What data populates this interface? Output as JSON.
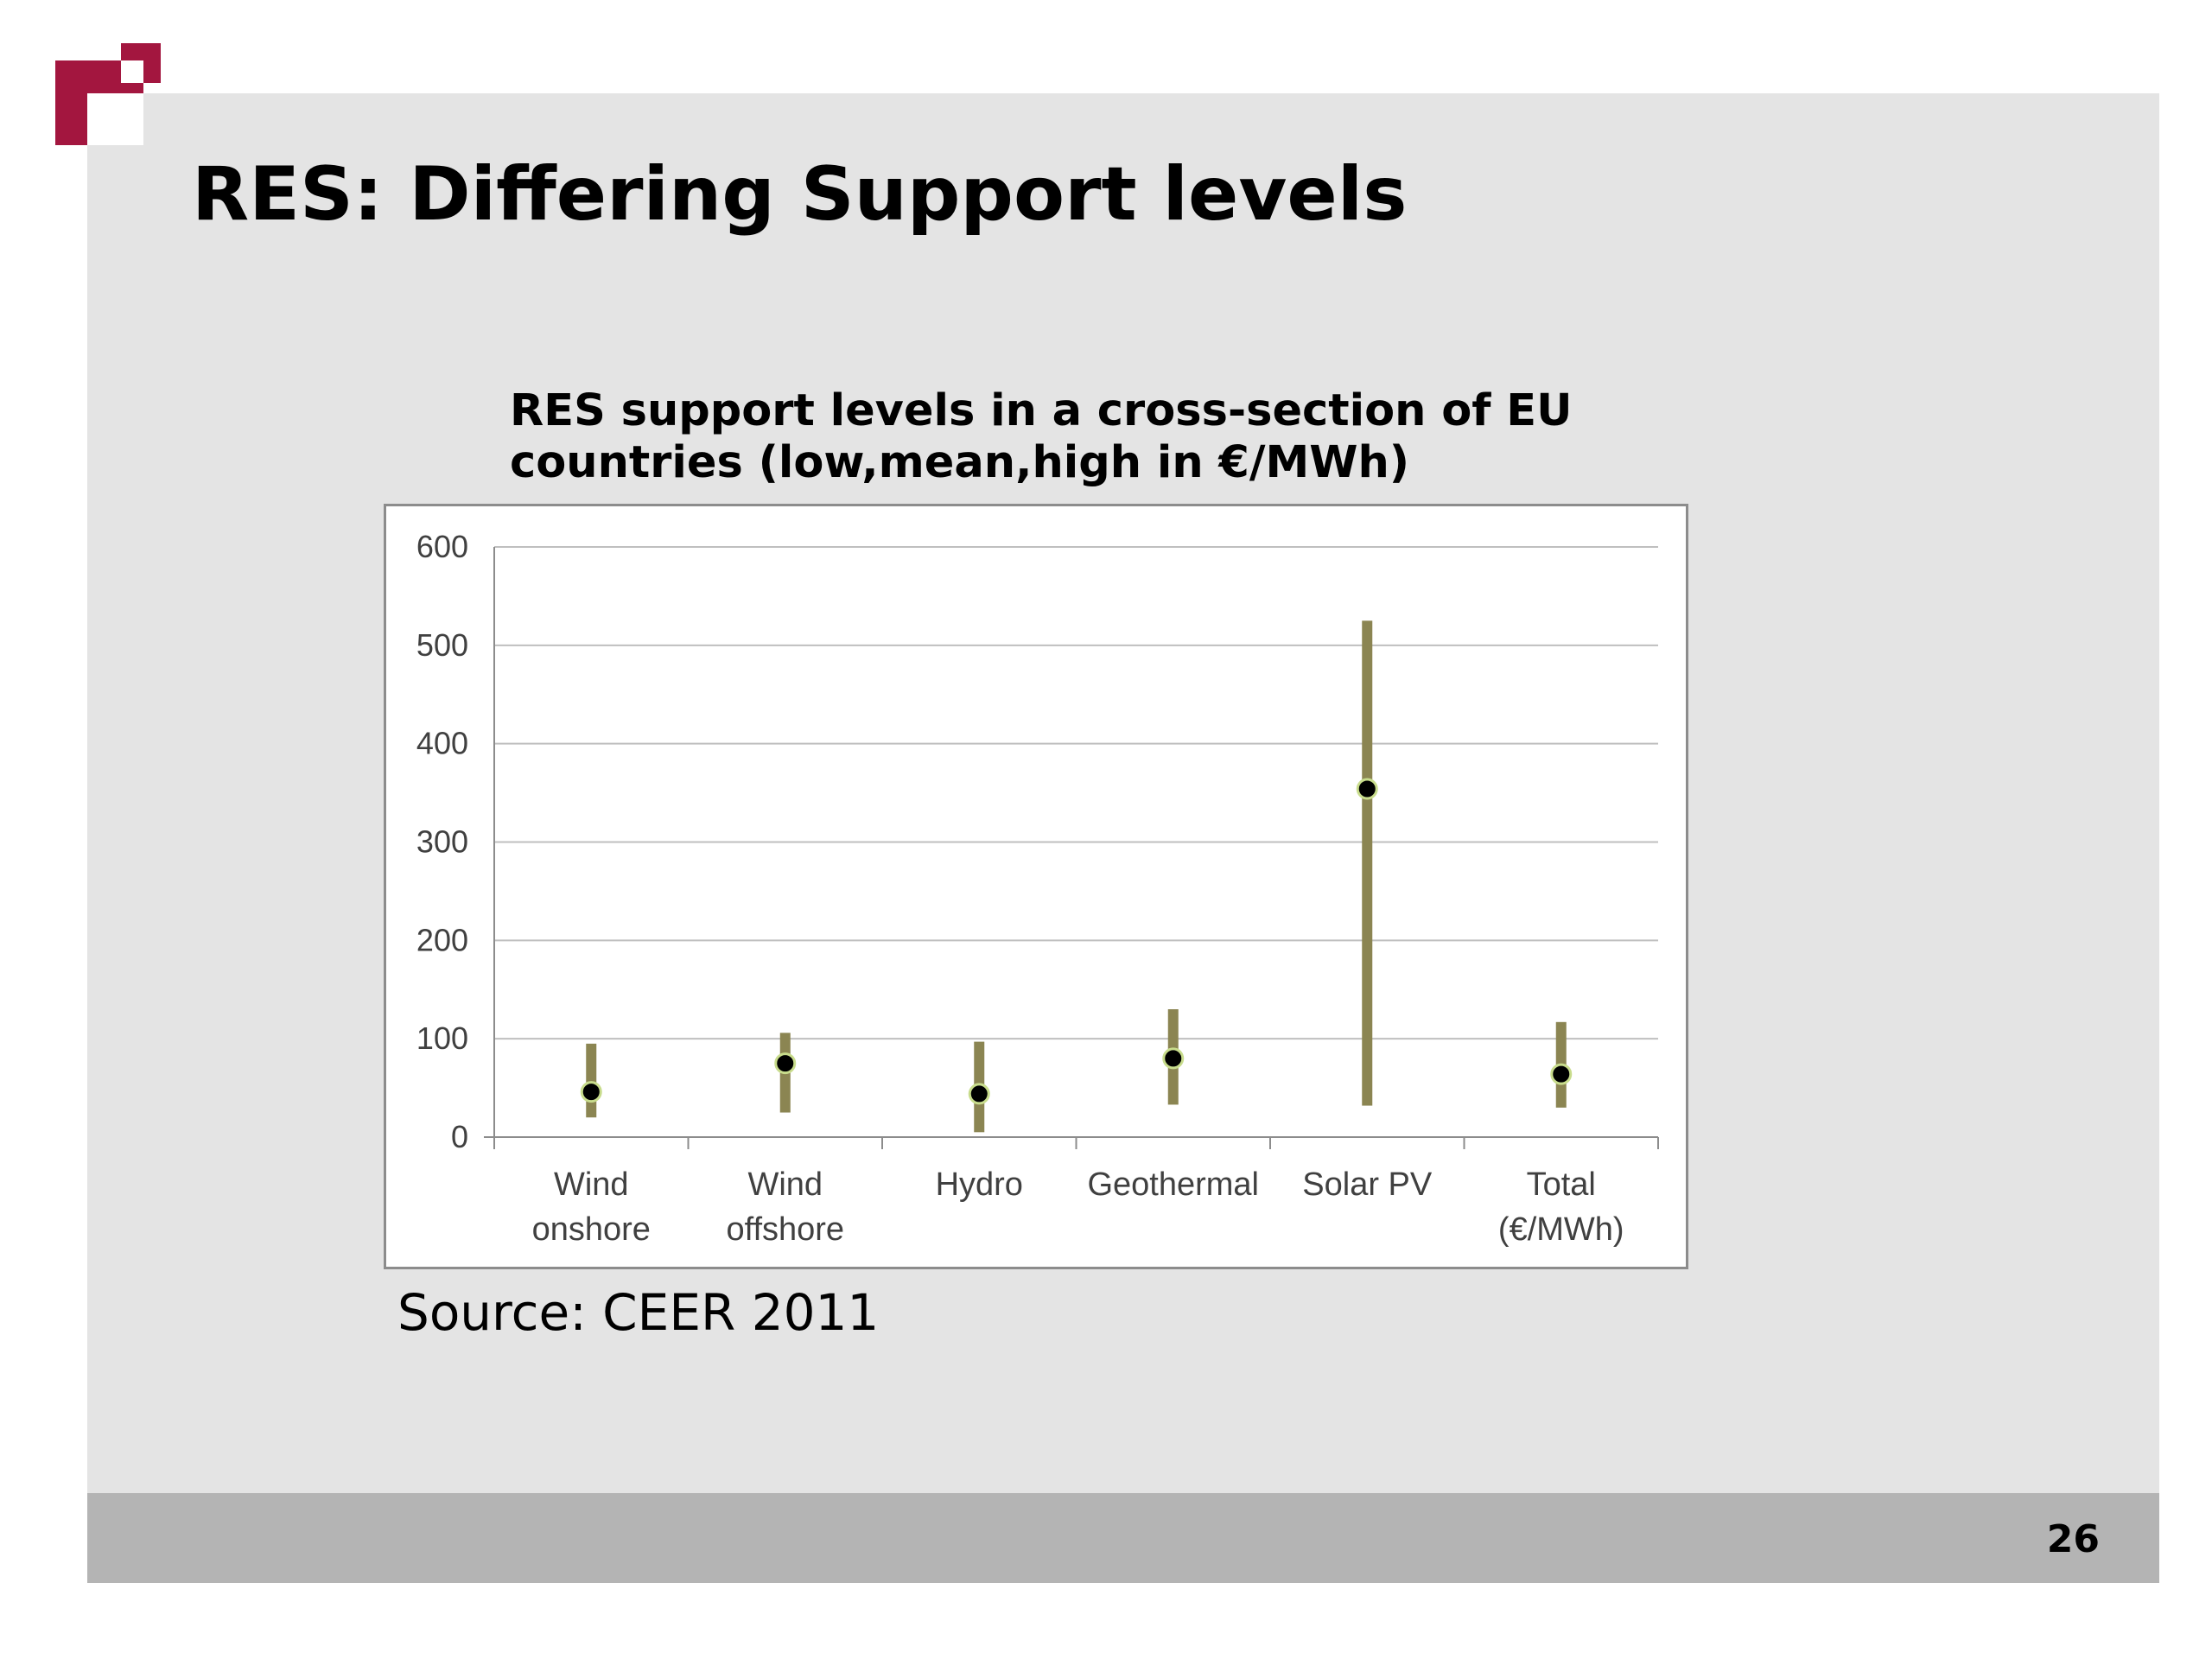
{
  "slide": {
    "title": "RES: Differing Support levels",
    "source": "Source: CEER 2011",
    "page_number": "26"
  },
  "colors": {
    "brand": "#a3163f",
    "range_bar": "#8b8552",
    "mean_marker": "#000000",
    "marker_outline": "#c8dc8c"
  },
  "chart_data": {
    "type": "range",
    "title_lines": [
      "RES support levels in a cross-section of EU",
      "countries (low,mean,high in €/MWh)"
    ],
    "categories": [
      [
        "Wind",
        "onshore"
      ],
      [
        "Wind",
        "offshore"
      ],
      [
        "Hydro"
      ],
      [
        "Geothermal"
      ],
      [
        "Solar PV"
      ],
      [
        "Total",
        "(€/MWh)"
      ]
    ],
    "series": [
      {
        "name": "low",
        "values": [
          20,
          25,
          5,
          33,
          32,
          30
        ]
      },
      {
        "name": "mean",
        "values": [
          46,
          75,
          44,
          80,
          354,
          64
        ]
      },
      {
        "name": "high",
        "values": [
          95,
          106,
          97,
          130,
          525,
          117
        ]
      }
    ],
    "ylim": [
      0,
      600
    ],
    "yticks": [
      "0",
      "100",
      "200",
      "300",
      "400",
      "500",
      "600"
    ],
    "grid": true,
    "legend": false
  }
}
